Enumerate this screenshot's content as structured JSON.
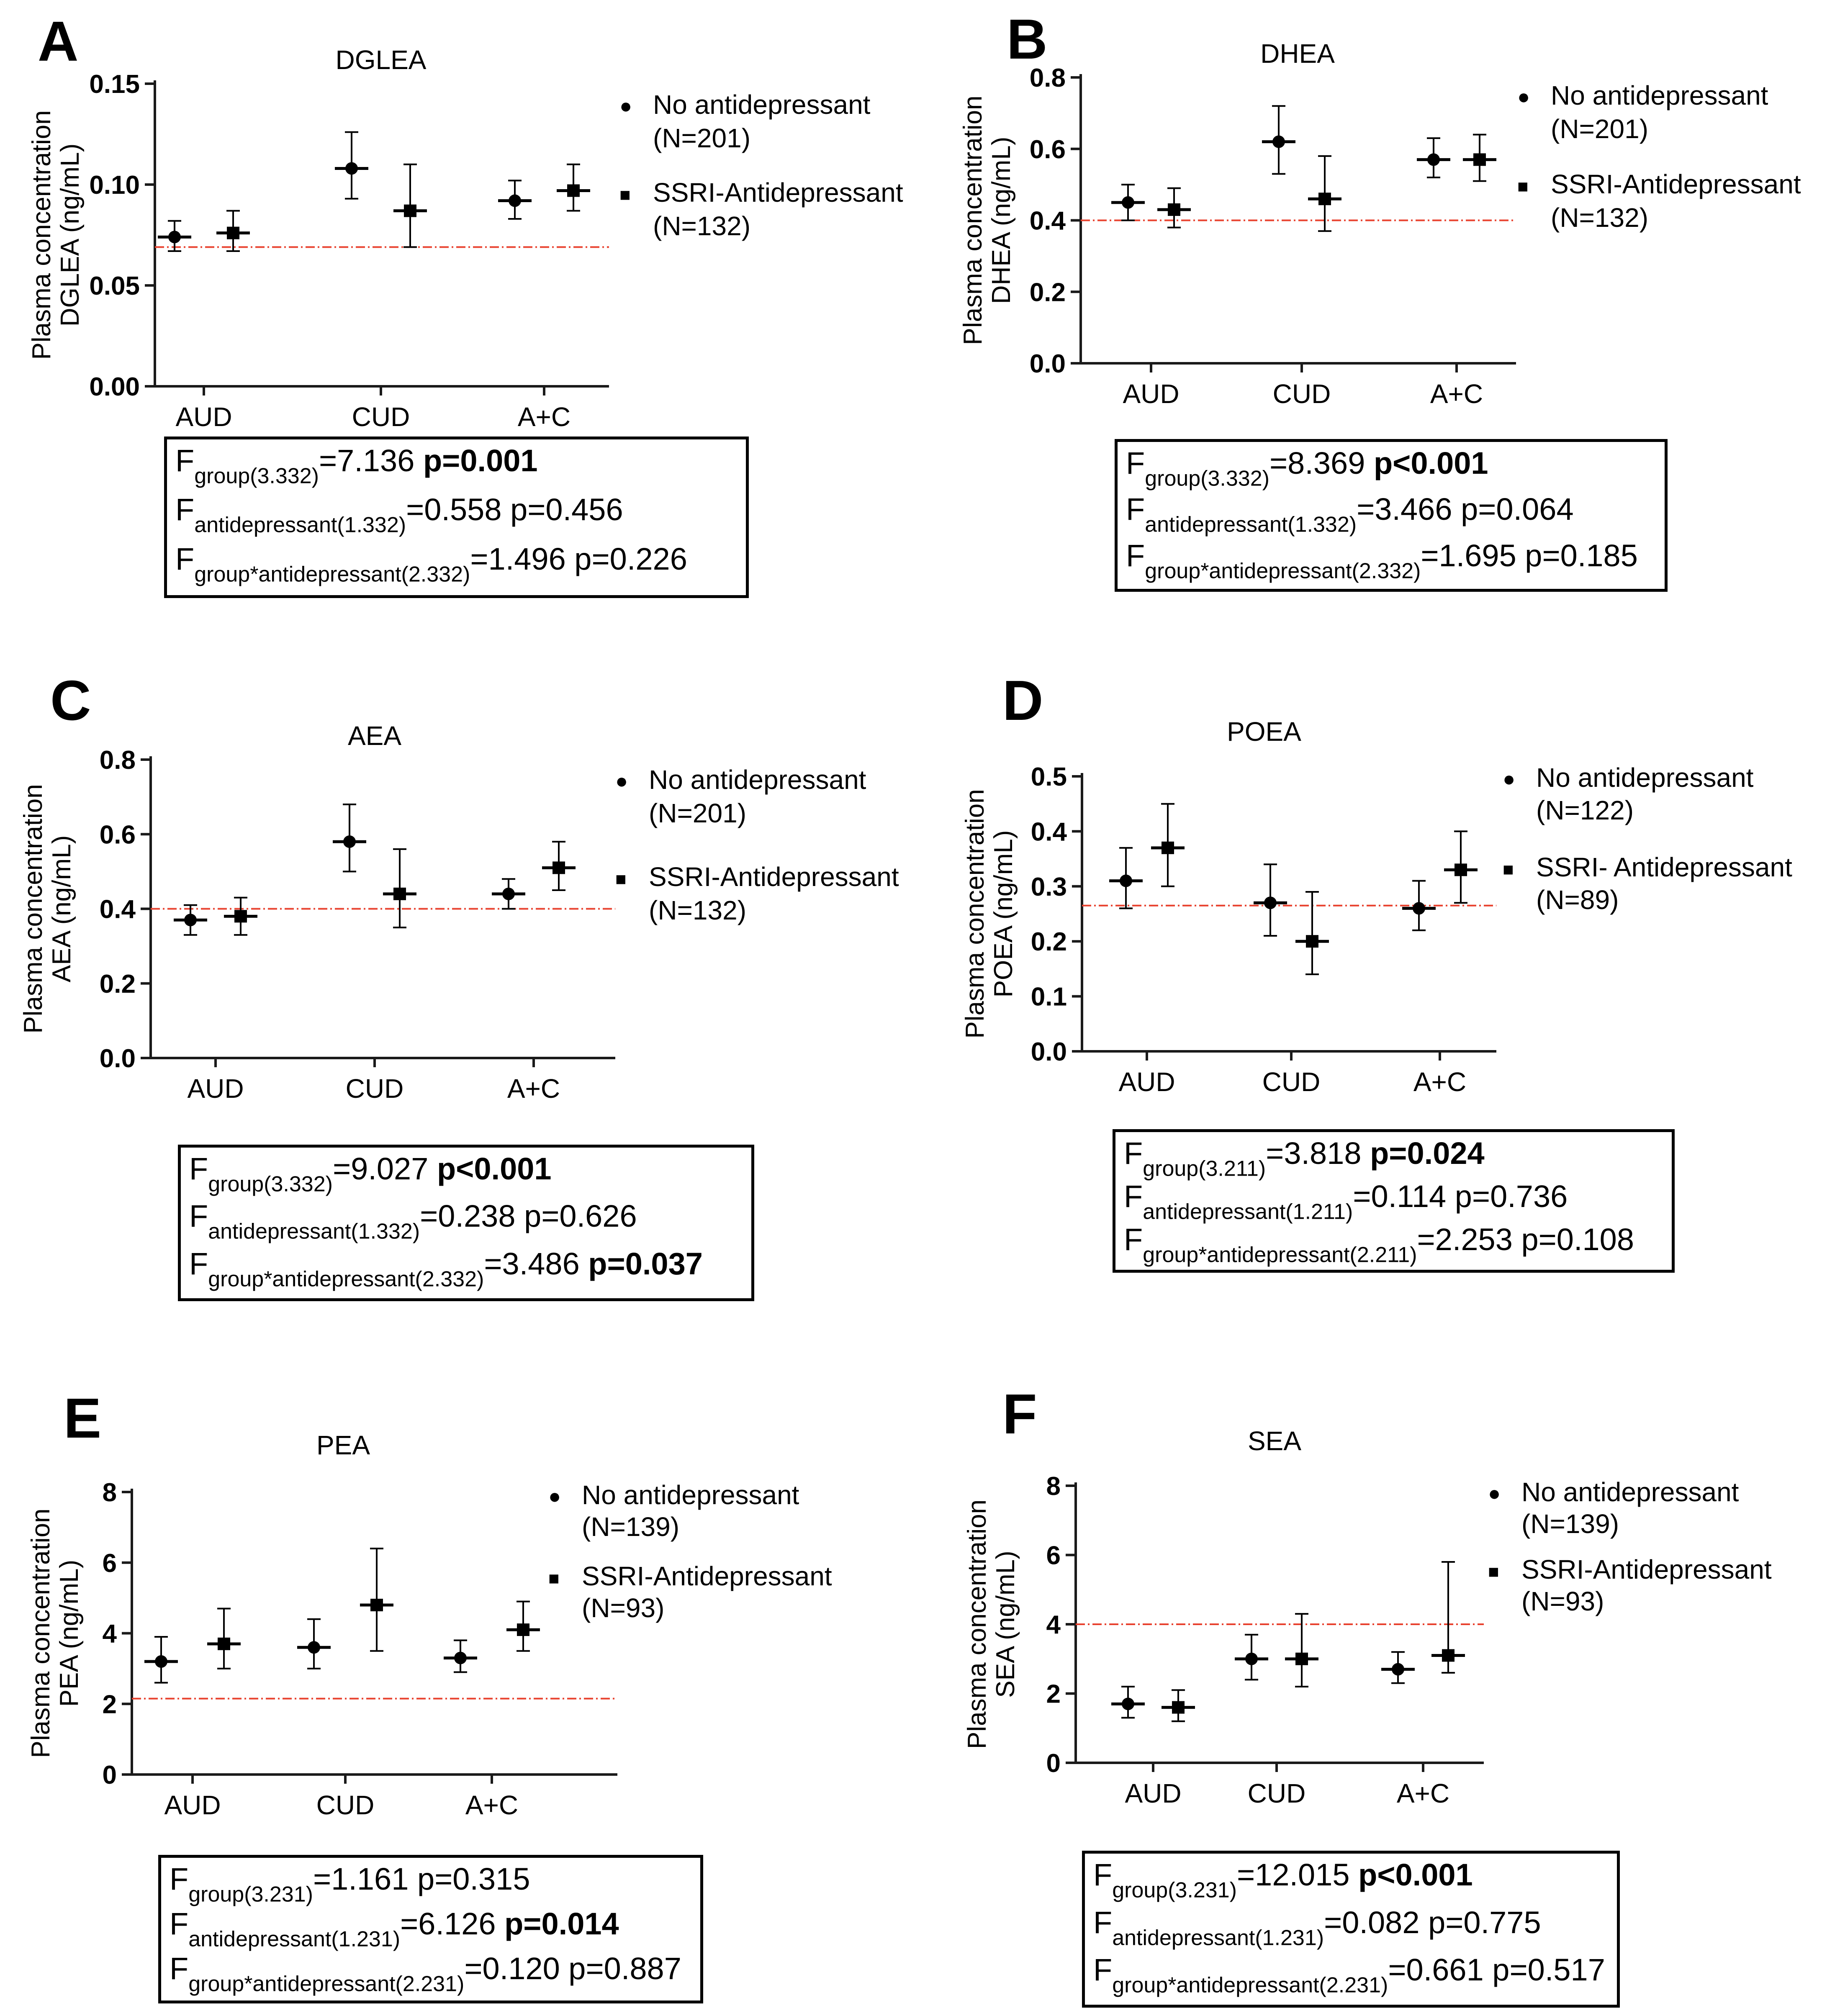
{
  "colors": {
    "reference_line": "#e8422f",
    "axis": "#1a1a1a",
    "marker": "#000000"
  },
  "legend_markers": {
    "circle": "●",
    "square": "■"
  },
  "chart_data": [
    {
      "panel": "A",
      "type": "scatter",
      "title": "DGLEA",
      "ylabel": [
        "Plasma concentration",
        "DGLEA (ng/mL)"
      ],
      "ylim": [
        0,
        0.15
      ],
      "yticks": [
        "0.00",
        "0.05",
        "0.10",
        "0.15"
      ],
      "ytick_values": [
        0,
        0.05,
        0.1,
        0.15
      ],
      "categories": [
        "AUD",
        "CUD",
        "A+C"
      ],
      "reference_line": 0.069,
      "series": [
        {
          "name": "No antidepressant",
          "n": "(N=201)",
          "marker": "circle",
          "values": [
            0.074,
            0.108,
            0.092
          ],
          "lower": [
            0.067,
            0.093,
            0.083
          ],
          "upper": [
            0.082,
            0.126,
            0.102
          ]
        },
        {
          "name": "SSRI-Antidepressant",
          "n": "(N=132)",
          "marker": "square",
          "values": [
            0.076,
            0.087,
            0.097
          ],
          "lower": [
            0.067,
            0.069,
            0.087
          ],
          "upper": [
            0.087,
            0.11,
            0.11
          ]
        }
      ],
      "stats": [
        {
          "F": "F",
          "sub": "group(3.332)",
          "val": "=7.136 ",
          "p": "p=0.001",
          "bold": true
        },
        {
          "F": "F",
          "sub": "antidepressant(1.332)",
          "val": "=0.558 ",
          "p": "p=0.456",
          "bold": false
        },
        {
          "F": "F",
          "sub": "group*antidepressant(2.332)",
          "val": "=1.496 ",
          "p": "p=0.226",
          "bold": false
        }
      ]
    },
    {
      "panel": "B",
      "type": "scatter",
      "title": "DHEA",
      "ylabel": [
        "Plasma concentration",
        "DHEA (ng/mL)"
      ],
      "ylim": [
        0,
        0.8
      ],
      "yticks": [
        "0.0",
        "0.2",
        "0.4",
        "0.6",
        "0.8"
      ],
      "ytick_values": [
        0,
        0.2,
        0.4,
        0.6,
        0.8
      ],
      "categories": [
        "AUD",
        "CUD",
        "A+C"
      ],
      "reference_line": 0.4,
      "series": [
        {
          "name": "No antidepressant",
          "n": "(N=201)",
          "marker": "circle",
          "values": [
            0.45,
            0.62,
            0.57
          ],
          "lower": [
            0.4,
            0.53,
            0.52
          ],
          "upper": [
            0.5,
            0.72,
            0.63
          ]
        },
        {
          "name": "SSRI-Antidepressant",
          "n": "(N=132)",
          "marker": "square",
          "values": [
            0.43,
            0.46,
            0.57
          ],
          "lower": [
            0.38,
            0.37,
            0.51
          ],
          "upper": [
            0.49,
            0.58,
            0.64
          ]
        }
      ],
      "stats": [
        {
          "F": "F",
          "sub": "group(3.332)",
          "val": "=8.369 ",
          "p": "p<0.001",
          "bold": true
        },
        {
          "F": "F",
          "sub": "antidepressant(1.332)",
          "val": "=3.466 ",
          "p": "p=0.064",
          "bold": false
        },
        {
          "F": "F",
          "sub": "group*antidepressant(2.332)",
          "val": "=1.695 ",
          "p": "p=0.185",
          "bold": false
        }
      ]
    },
    {
      "panel": "C",
      "type": "scatter",
      "title": "AEA",
      "ylabel": [
        "Plasma concentration",
        "AEA (ng/mL)"
      ],
      "ylim": [
        0,
        0.8
      ],
      "yticks": [
        "0.0",
        "0.2",
        "0.4",
        "0.6",
        "0.8"
      ],
      "ytick_values": [
        0,
        0.2,
        0.4,
        0.6,
        0.8
      ],
      "categories": [
        "AUD",
        "CUD",
        "A+C"
      ],
      "reference_line": 0.4,
      "series": [
        {
          "name": "No antidepressant",
          "n": "(N=201)",
          "marker": "circle",
          "values": [
            0.37,
            0.58,
            0.44
          ],
          "lower": [
            0.33,
            0.5,
            0.4
          ],
          "upper": [
            0.41,
            0.68,
            0.48
          ]
        },
        {
          "name": "SSRI-Antidepressant",
          "n": "(N=132)",
          "marker": "square",
          "values": [
            0.38,
            0.44,
            0.51
          ],
          "lower": [
            0.33,
            0.35,
            0.45
          ],
          "upper": [
            0.43,
            0.56,
            0.58
          ]
        }
      ],
      "stats": [
        {
          "F": "F",
          "sub": "group(3.332)",
          "val": "=9.027 ",
          "p": "p<0.001",
          "bold": true
        },
        {
          "F": "F",
          "sub": "antidepressant(1.332)",
          "val": "=0.238 ",
          "p": "p=0.626",
          "bold": false
        },
        {
          "F": "F",
          "sub": "group*antidepressant(2.332)",
          "val": "=3.486 ",
          "p": "p=0.037",
          "bold": true
        }
      ]
    },
    {
      "panel": "D",
      "type": "scatter",
      "title": "POEA",
      "ylabel": [
        "Plasma concentration",
        "POEA (ng/mL)"
      ],
      "ylim": [
        0,
        0.5
      ],
      "yticks": [
        "0.0",
        "0.1",
        "0.2",
        "0.3",
        "0.4",
        "0.5"
      ],
      "ytick_values": [
        0,
        0.1,
        0.2,
        0.3,
        0.4,
        0.5
      ],
      "categories": [
        "AUD",
        "CUD",
        "A+C"
      ],
      "reference_line": 0.265,
      "series": [
        {
          "name": "No antidepressant",
          "n": "(N=122)",
          "marker": "circle",
          "values": [
            0.31,
            0.27,
            0.26
          ],
          "lower": [
            0.26,
            0.21,
            0.22
          ],
          "upper": [
            0.37,
            0.34,
            0.31
          ]
        },
        {
          "name": "SSRI- Antidepressant",
          "n": "(N=89)",
          "marker": "square",
          "values": [
            0.37,
            0.2,
            0.33
          ],
          "lower": [
            0.3,
            0.14,
            0.27
          ],
          "upper": [
            0.45,
            0.29,
            0.4
          ]
        }
      ],
      "stats": [
        {
          "F": "F",
          "sub": "group(3.211)",
          "val": "=3.818 ",
          "p": "p=0.024",
          "bold": true
        },
        {
          "F": "F",
          "sub": "antidepressant(1.211)",
          "val": "=0.114 ",
          "p": "p=0.736",
          "bold": false
        },
        {
          "F": "F",
          "sub": "group*antidepressant(2.211)",
          "val": "=2.253 ",
          "p": "p=0.108",
          "bold": false
        }
      ]
    },
    {
      "panel": "E",
      "type": "scatter",
      "title": "PEA",
      "ylabel": [
        "Plasma concentration",
        "PEA (ng/mL)"
      ],
      "ylim": [
        0,
        8
      ],
      "yticks": [
        "0",
        "2",
        "4",
        "6",
        "8"
      ],
      "ytick_values": [
        0,
        2,
        4,
        6,
        8
      ],
      "categories": [
        "AUD",
        "CUD",
        "A+C"
      ],
      "reference_line": 2.15,
      "series": [
        {
          "name": "No antidepressant",
          "n": "(N=139)",
          "marker": "circle",
          "values": [
            3.2,
            3.6,
            3.3
          ],
          "lower": [
            2.6,
            3.0,
            2.9
          ],
          "upper": [
            3.9,
            4.4,
            3.8
          ]
        },
        {
          "name": "SSRI-Antidepressant",
          "n": "(N=93)",
          "marker": "square",
          "values": [
            3.7,
            4.8,
            4.1
          ],
          "lower": [
            3.0,
            3.5,
            3.5
          ],
          "upper": [
            4.7,
            6.4,
            4.9
          ]
        }
      ],
      "stats": [
        {
          "F": "F",
          "sub": "group(3.231)",
          "val": "=1.161 ",
          "p": "p=0.315",
          "bold": false
        },
        {
          "F": "F",
          "sub": "antidepressant(1.231)",
          "val": "=6.126 ",
          "p": "p=0.014",
          "bold": true
        },
        {
          "F": "F",
          "sub": "group*antidepressant(2.231)",
          "val": "=0.120 ",
          "p": "p=0.887",
          "bold": false
        }
      ]
    },
    {
      "panel": "F",
      "type": "scatter",
      "title": "SEA",
      "ylabel": [
        "Plasma concentration",
        "SEA (ng/mL)"
      ],
      "ylim": [
        0,
        8
      ],
      "yticks": [
        "0",
        "2",
        "4",
        "6",
        "8"
      ],
      "ytick_values": [
        0,
        2,
        4,
        6,
        8
      ],
      "categories": [
        "AUD",
        "CUD",
        "A+C"
      ],
      "reference_line": 4.0,
      "series": [
        {
          "name": "No antidepressant",
          "n": "(N=139)",
          "marker": "circle",
          "values": [
            1.7,
            3.0,
            2.7
          ],
          "lower": [
            1.3,
            2.4,
            2.3
          ],
          "upper": [
            2.2,
            3.7,
            3.2
          ]
        },
        {
          "name": "SSRI-Antidepressant",
          "n": "(N=93)",
          "marker": "square",
          "values": [
            1.6,
            3.0,
            3.1
          ],
          "lower": [
            1.2,
            2.2,
            2.6
          ],
          "upper": [
            2.1,
            4.3,
            5.8
          ]
        }
      ],
      "stats": [
        {
          "F": "F",
          "sub": "group(3.231)",
          "val": "=12.015 ",
          "p": "p<0.001",
          "bold": true
        },
        {
          "F": "F",
          "sub": "antidepressant(1.231)",
          "val": "=0.082 ",
          "p": "p=0.775",
          "bold": false
        },
        {
          "F": "F",
          "sub": "group*antidepressant(2.231)",
          "val": "=0.661 ",
          "p": "p=0.517",
          "bold": false
        }
      ]
    }
  ]
}
